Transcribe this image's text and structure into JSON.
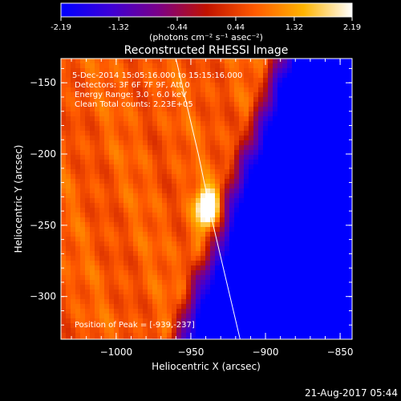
{
  "colorbar": {
    "ticks": [
      "-2.19",
      "-1.32",
      "-0.44",
      "0.44",
      "1.32",
      "2.19"
    ],
    "units": "(photons cm⁻² s⁻¹ asec⁻²)"
  },
  "plot": {
    "title": "Reconstructed RHESSI Image",
    "info_lines": [
      "5-Dec-2014 15:05:16.000 to 15:15:16.000",
      "Detectors: 3F 6F 7F 9F, Att 0",
      "Energy Range: 3.0 - 6.0 keV",
      "Clean    Total counts: 2.23E+05"
    ],
    "peak_label": "Position of Peak = [-939,-237]"
  },
  "footer": {
    "timestamp": "21-Aug-2017 05:44"
  },
  "chart_data": {
    "type": "heatmap",
    "title": "Reconstructed RHESSI Image",
    "xlabel": "Heliocentric X (arcsec)",
    "ylabel": "Heliocentric Y (arcsec)",
    "xlim": [
      -1037,
      -842
    ],
    "ylim": [
      -330,
      -133
    ],
    "xticks": [
      -1000,
      -950,
      -900,
      -850
    ],
    "yticks": [
      -150,
      -200,
      -250,
      -300
    ],
    "xtick_labels": [
      "−1000",
      "−950",
      "−900",
      "−850"
    ],
    "ytick_labels": [
      "−150",
      "−200",
      "−250",
      "−300"
    ],
    "colorbar_range": [
      -2.19,
      2.19
    ],
    "peak": {
      "x": -939,
      "y": -237
    },
    "limb_curve": [
      [
        -960,
        -133
      ],
      [
        -945,
        -200
      ],
      [
        -935,
        -250
      ],
      [
        -917,
        -330
      ]
    ],
    "colormap": [
      "#0000ff",
      "#3c00d8",
      "#7a0088",
      "#c01200",
      "#ff5a00",
      "#ffb400",
      "#ffffff"
    ]
  }
}
